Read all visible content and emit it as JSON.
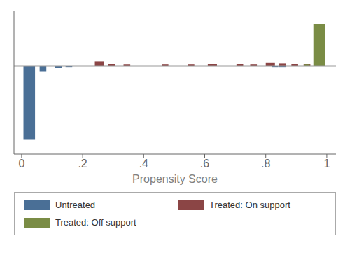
{
  "chart_data": {
    "type": "bar",
    "xlabel": "Propensity Score",
    "xlim": [
      -0.025,
      1.03
    ],
    "xticks": [
      0,
      {
        "value": 0.2,
        "label": ".2"
      },
      {
        "value": 0.4,
        "label": ".4"
      },
      {
        "value": 0.6,
        "label": ".6"
      },
      {
        "value": 0.8,
        "label": ".8"
      },
      1
    ],
    "ylim": [
      -1.05,
      0.65
    ],
    "tick_labels": "x",
    "legend": "bottom",
    "series": [
      {
        "name": "Untreated",
        "color": "#4a6f96",
        "x": [
          0.025,
          0.07,
          0.12,
          0.155,
          0.83,
          0.855
        ],
        "values": [
          -0.88,
          -0.07,
          -0.025,
          -0.018,
          -0.018,
          -0.018
        ],
        "widths": [
          0.038,
          0.022,
          0.022,
          0.022,
          0.022,
          0.022
        ]
      },
      {
        "name": "Treated: On support",
        "color": "#8b4545",
        "x": [
          0.255,
          0.295,
          0.345,
          0.47,
          0.555,
          0.625,
          0.715,
          0.76,
          0.815,
          0.855,
          0.895,
          0.935
        ],
        "values": [
          0.055,
          0.02,
          0.015,
          0.015,
          0.015,
          0.02,
          0.018,
          0.015,
          0.035,
          0.03,
          0.025,
          0.018
        ],
        "widths": [
          0.03,
          0.022,
          0.022,
          0.022,
          0.022,
          0.03,
          0.022,
          0.022,
          0.03,
          0.022,
          0.022,
          0.022
        ]
      },
      {
        "name": "Treated: Off support",
        "color": "#7a8c45",
        "x": [
          0.975,
          0.935
        ],
        "values": [
          0.5,
          0.015
        ],
        "widths": [
          0.038,
          0.018
        ]
      }
    ]
  }
}
